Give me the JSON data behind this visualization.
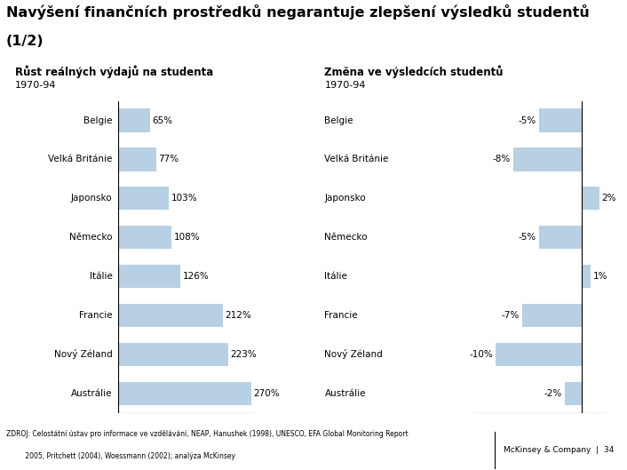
{
  "title_line1": "Navýšení finančních prostředků negarantuje zlepšení výsledků studentů",
  "title_line2": "(1/2)",
  "left_header": "Růst reálných výdajů na studenta",
  "left_subheader": "1970-94",
  "right_header": "Změna ve výsledcích studentů",
  "right_subheader": "1970-94",
  "countries": [
    "Belgie",
    "Velká Británie",
    "Japonsko",
    "Německo",
    "Itálie",
    "Francie",
    "Nový Zéland",
    "Austrálie"
  ],
  "left_values": [
    65,
    77,
    103,
    108,
    126,
    212,
    223,
    270
  ],
  "left_labels": [
    "65%",
    "77%",
    "103%",
    "108%",
    "126%",
    "212%",
    "223%",
    "270%"
  ],
  "right_values": [
    -5,
    -8,
    2,
    -5,
    1,
    -7,
    -10,
    -2
  ],
  "right_labels": [
    "-5%",
    "-8%",
    "2%",
    "-5%",
    "1%",
    "-7%",
    "-10%",
    "-2%"
  ],
  "bar_color": "#b8d0e3",
  "panel_bg": "#dce9f3",
  "main_bg": "#ffffff",
  "footer_text_line1": "ZDROJ: Celostátní ústav pro informace ve vzdělávání, NEAP, Hanushek (1998), UNESCO, EFA Global Monitoring Report",
  "footer_text_line2": "         2005, Pritchett (2004), Woessmann (2002); analýza McKinsey",
  "footer_right": "McKinsey & Company  |  34"
}
